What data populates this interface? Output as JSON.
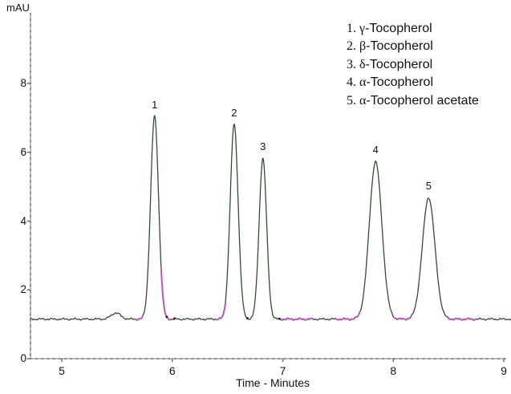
{
  "chart": {
    "y_axis_unit": "mAU",
    "x_axis_label": "Time - Minutes"
  },
  "legend": {
    "items": [
      {
        "index": "1.",
        "symbol": "γ",
        "compound": "-Tocopherol"
      },
      {
        "index": "2.",
        "symbol": "β",
        "compound": "-Tocopherol"
      },
      {
        "index": "3.",
        "symbol": "δ",
        "compound": "-Tocopherol"
      },
      {
        "index": "4.",
        "symbol": "α",
        "compound": "-Tocopherol"
      },
      {
        "index": "5.",
        "symbol": "α",
        "compound": "-Tocopherol acetate"
      }
    ]
  },
  "chart_data": {
    "type": "line",
    "title": "",
    "xlabel": "Time - Minutes",
    "ylabel": "mAU",
    "xlim": [
      4.72,
      9.07
    ],
    "ylim": [
      0,
      10
    ],
    "x_ticks": [
      5,
      6,
      7,
      8,
      9
    ],
    "y_ticks": [
      0,
      2,
      4,
      6,
      8
    ],
    "grid": false,
    "legend_position": "top-right",
    "baseline_mau": 1.15,
    "trace_color": "#2f4f2f",
    "integration_marker_color": "#b55ab5",
    "peaks": [
      {
        "label": "1",
        "compound": "γ-Tocopherol",
        "time_min": 5.84,
        "apex_mau": 7.05,
        "sigma_min": 0.036
      },
      {
        "label": "2",
        "compound": "β-Tocopherol",
        "time_min": 6.56,
        "apex_mau": 6.82,
        "sigma_min": 0.036
      },
      {
        "label": "3",
        "compound": "δ-Tocopherol",
        "time_min": 6.82,
        "apex_mau": 5.82,
        "sigma_min": 0.034
      },
      {
        "label": "4",
        "compound": "α-Tocopherol",
        "time_min": 7.84,
        "apex_mau": 5.73,
        "sigma_min": 0.057
      },
      {
        "label": "5",
        "compound": "α-Tocopherol acetate",
        "time_min": 8.32,
        "apex_mau": 4.68,
        "sigma_min": 0.057
      }
    ],
    "baseline_bump": {
      "time_min": 5.49,
      "apex_mau": 1.33,
      "sigma_min": 0.042
    },
    "integration_segments_min": [
      [
        5.66,
        5.73
      ],
      [
        5.9,
        6.0
      ],
      [
        6.4,
        6.48
      ],
      [
        6.97,
        7.27
      ],
      [
        7.49,
        7.7
      ],
      [
        8.01,
        8.16
      ],
      [
        8.5,
        8.74
      ]
    ],
    "integration_dots_min": [
      5.95,
      6.02,
      6.68,
      6.97
    ]
  }
}
